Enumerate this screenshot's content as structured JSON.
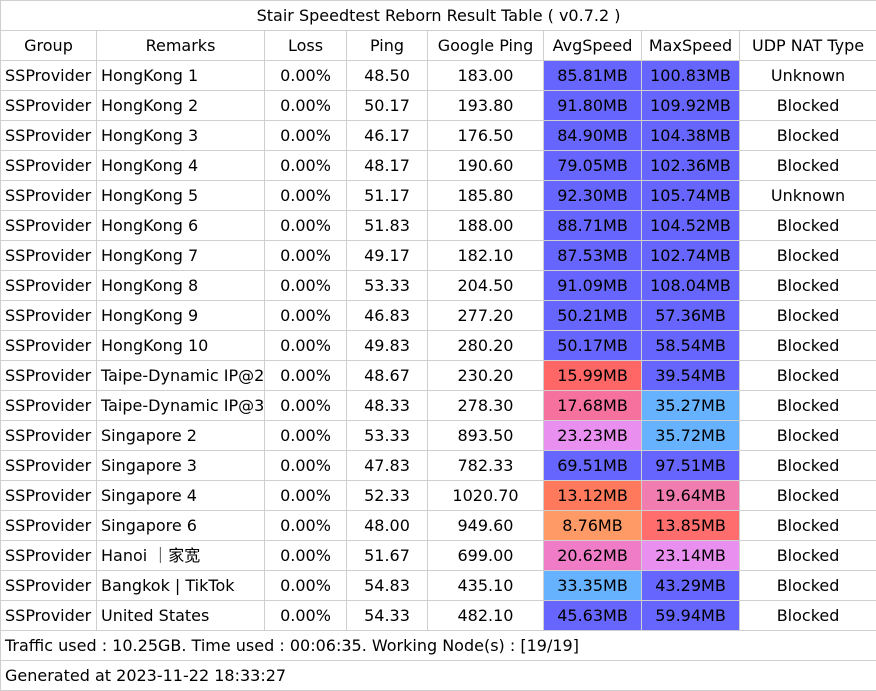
{
  "title": "Stair Speedtest Reborn Result Table ( v0.7.2 )",
  "headers": [
    "Group",
    "Remarks",
    "Loss",
    "Ping",
    "Google Ping",
    "AvgSpeed",
    "MaxSpeed",
    "UDP NAT Type"
  ],
  "rows": [
    {
      "group": "SSProvider",
      "remarks": "HongKong 1",
      "loss": "0.00%",
      "ping": "48.50",
      "google_ping": "183.00",
      "avg_speed": "85.81MB",
      "avg_color": "#6666ff",
      "max_speed": "100.83MB",
      "max_color": "#6666ff",
      "nat": "Unknown"
    },
    {
      "group": "SSProvider",
      "remarks": "HongKong 2",
      "loss": "0.00%",
      "ping": "50.17",
      "google_ping": "193.80",
      "avg_speed": "91.80MB",
      "avg_color": "#6666ff",
      "max_speed": "109.92MB",
      "max_color": "#6666ff",
      "nat": "Blocked"
    },
    {
      "group": "SSProvider",
      "remarks": "HongKong 3",
      "loss": "0.00%",
      "ping": "46.17",
      "google_ping": "176.50",
      "avg_speed": "84.90MB",
      "avg_color": "#6666ff",
      "max_speed": "104.38MB",
      "max_color": "#6666ff",
      "nat": "Blocked"
    },
    {
      "group": "SSProvider",
      "remarks": "HongKong 4",
      "loss": "0.00%",
      "ping": "48.17",
      "google_ping": "190.60",
      "avg_speed": "79.05MB",
      "avg_color": "#6666ff",
      "max_speed": "102.36MB",
      "max_color": "#6666ff",
      "nat": "Blocked"
    },
    {
      "group": "SSProvider",
      "remarks": "HongKong 5",
      "loss": "0.00%",
      "ping": "51.17",
      "google_ping": "185.80",
      "avg_speed": "92.30MB",
      "avg_color": "#6666ff",
      "max_speed": "105.74MB",
      "max_color": "#6666ff",
      "nat": "Unknown"
    },
    {
      "group": "SSProvider",
      "remarks": "HongKong 6",
      "loss": "0.00%",
      "ping": "51.83",
      "google_ping": "188.00",
      "avg_speed": "88.71MB",
      "avg_color": "#6666ff",
      "max_speed": "104.52MB",
      "max_color": "#6666ff",
      "nat": "Blocked"
    },
    {
      "group": "SSProvider",
      "remarks": "HongKong 7",
      "loss": "0.00%",
      "ping": "49.17",
      "google_ping": "182.10",
      "avg_speed": "87.53MB",
      "avg_color": "#6666ff",
      "max_speed": "102.74MB",
      "max_color": "#6666ff",
      "nat": "Blocked"
    },
    {
      "group": "SSProvider",
      "remarks": "HongKong 8",
      "loss": "0.00%",
      "ping": "53.33",
      "google_ping": "204.50",
      "avg_speed": "91.09MB",
      "avg_color": "#6666ff",
      "max_speed": "108.04MB",
      "max_color": "#6666ff",
      "nat": "Blocked"
    },
    {
      "group": "SSProvider",
      "remarks": "HongKong 9",
      "loss": "0.00%",
      "ping": "46.83",
      "google_ping": "277.20",
      "avg_speed": "50.21MB",
      "avg_color": "#6666ff",
      "max_speed": "57.36MB",
      "max_color": "#6666ff",
      "nat": "Blocked"
    },
    {
      "group": "SSProvider",
      "remarks": "HongKong 10",
      "loss": "0.00%",
      "ping": "49.83",
      "google_ping": "280.20",
      "avg_speed": "50.17MB",
      "avg_color": "#6666ff",
      "max_speed": "58.54MB",
      "max_color": "#6666ff",
      "nat": "Blocked"
    },
    {
      "group": "SSProvider",
      "remarks": "Taipe-Dynamic IP@2",
      "loss": "0.00%",
      "ping": "48.67",
      "google_ping": "230.20",
      "avg_speed": "15.99MB",
      "avg_color": "#ff6666",
      "max_speed": "39.54MB",
      "max_color": "#6666ff",
      "nat": "Blocked"
    },
    {
      "group": "SSProvider",
      "remarks": "Taipe-Dynamic IP@3",
      "loss": "0.00%",
      "ping": "48.33",
      "google_ping": "278.30",
      "avg_speed": "17.68MB",
      "avg_color": "#f7719f",
      "max_speed": "35.27MB",
      "max_color": "#66b2ff",
      "nat": "Blocked"
    },
    {
      "group": "SSProvider",
      "remarks": "Singapore 2",
      "loss": "0.00%",
      "ping": "53.33",
      "google_ping": "893.50",
      "avg_speed": "23.23MB",
      "avg_color": "#e88ff0",
      "max_speed": "35.72MB",
      "max_color": "#66b2ff",
      "nat": "Blocked"
    },
    {
      "group": "SSProvider",
      "remarks": "Singapore 3",
      "loss": "0.00%",
      "ping": "47.83",
      "google_ping": "782.33",
      "avg_speed": "69.51MB",
      "avg_color": "#6666ff",
      "max_speed": "97.51MB",
      "max_color": "#6666ff",
      "nat": "Blocked"
    },
    {
      "group": "SSProvider",
      "remarks": "Singapore 4",
      "loss": "0.00%",
      "ping": "52.33",
      "google_ping": "1020.70",
      "avg_speed": "13.12MB",
      "avg_color": "#ff7a5c",
      "max_speed": "19.64MB",
      "max_color": "#f07cb0",
      "nat": "Blocked"
    },
    {
      "group": "SSProvider",
      "remarks": "Singapore 6",
      "loss": "0.00%",
      "ping": "48.00",
      "google_ping": "949.60",
      "avg_speed": "8.76MB",
      "avg_color": "#ff9966",
      "max_speed": "13.85MB",
      "max_color": "#ff6d6d",
      "nat": "Blocked"
    },
    {
      "group": "SSProvider",
      "remarks": "Hanoi ｜家宽",
      "loss": "0.00%",
      "ping": "51.67",
      "google_ping": "699.00",
      "avg_speed": "20.62MB",
      "avg_color": "#f07cc8",
      "max_speed": "23.14MB",
      "max_color": "#e88ff0",
      "nat": "Blocked"
    },
    {
      "group": "SSProvider",
      "remarks": "Bangkok | TikTok",
      "loss": "0.00%",
      "ping": "54.83",
      "google_ping": "435.10",
      "avg_speed": "33.35MB",
      "avg_color": "#66b2ff",
      "max_speed": "43.29MB",
      "max_color": "#6666ff",
      "nat": "Blocked"
    },
    {
      "group": "SSProvider",
      "remarks": "United States",
      "loss": "0.00%",
      "ping": "54.33",
      "google_ping": "482.10",
      "avg_speed": "45.63MB",
      "avg_color": "#6666ff",
      "max_speed": "59.94MB",
      "max_color": "#6666ff",
      "nat": "Blocked"
    }
  ],
  "footer": {
    "traffic": "Traffic used : 10.25GB. Time used : 00:06:35. Working Node(s) : [19/19]",
    "generated": "Generated at 2023-11-22 18:33:27"
  }
}
